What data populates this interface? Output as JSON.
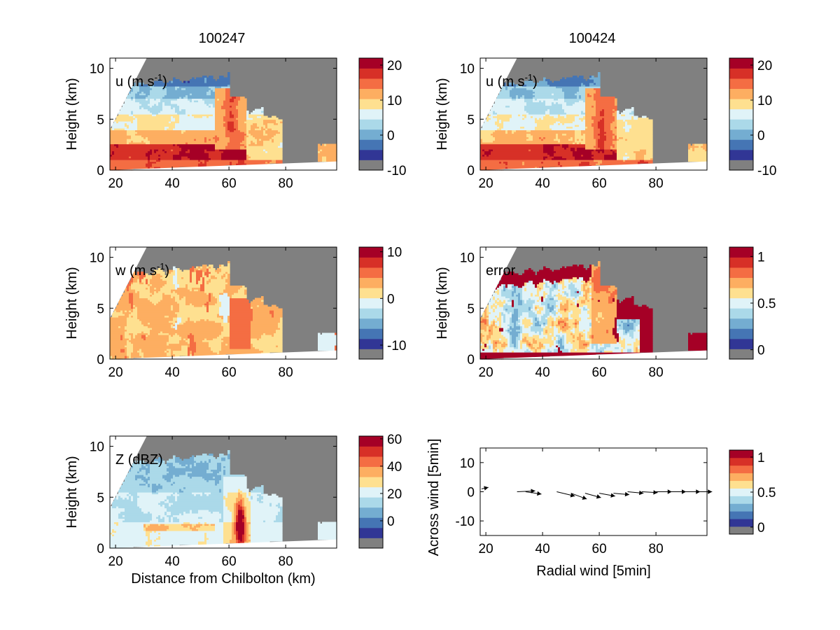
{
  "columns": [
    {
      "title": "100247"
    },
    {
      "title": "100424"
    }
  ],
  "chart_data": [
    {
      "id": "u-left",
      "type": "heatmap",
      "column": "100247",
      "label": "u (m s",
      "label_sup": "-1",
      "label_tail": ")",
      "ylabel": "Height (km)",
      "xlabel": "",
      "xlim": [
        18,
        98
      ],
      "ylim": [
        0,
        11
      ],
      "xticks": [
        "20",
        "40",
        "60",
        "80"
      ],
      "yticks": [
        "0",
        "5",
        "10"
      ],
      "field": "u",
      "colorbar": {
        "range": [
          -10,
          22
        ],
        "ticks": [
          {
            "v": -10,
            "label": "-10"
          },
          {
            "v": 0,
            "label": "0"
          },
          {
            "v": 10,
            "label": "10"
          },
          {
            "v": 20,
            "label": "20"
          }
        ]
      }
    },
    {
      "id": "u-right",
      "type": "heatmap",
      "column": "100424",
      "label": "u (m s",
      "label_sup": "-1",
      "label_tail": ")",
      "ylabel": "Height (km)",
      "xlabel": "",
      "xlim": [
        18,
        98
      ],
      "ylim": [
        0,
        11
      ],
      "xticks": [
        "20",
        "40",
        "60",
        "80"
      ],
      "yticks": [
        "0",
        "5",
        "10"
      ],
      "field": "u2",
      "colorbar": {
        "range": [
          -10,
          22
        ],
        "ticks": [
          {
            "v": -10,
            "label": "-10"
          },
          {
            "v": 0,
            "label": "0"
          },
          {
            "v": 10,
            "label": "10"
          },
          {
            "v": 20,
            "label": "20"
          }
        ]
      }
    },
    {
      "id": "w-left",
      "type": "heatmap",
      "column": "100247",
      "label": "w (m s",
      "label_sup": "-1",
      "label_tail": ")",
      "ylabel": "Height (km)",
      "xlabel": "",
      "xlim": [
        18,
        98
      ],
      "ylim": [
        0,
        11
      ],
      "xticks": [
        "20",
        "40",
        "60",
        "80"
      ],
      "yticks": [
        "0",
        "5",
        "10"
      ],
      "field": "w",
      "colorbar": {
        "range": [
          -13,
          11
        ],
        "ticks": [
          {
            "v": -10,
            "label": "-10"
          },
          {
            "v": 0,
            "label": "0"
          },
          {
            "v": 10,
            "label": "10"
          }
        ]
      }
    },
    {
      "id": "error-right",
      "type": "heatmap",
      "column": "100424",
      "label": "error",
      "label_sup": "",
      "label_tail": "",
      "ylabel": "Height (km)",
      "xlabel": "",
      "xlim": [
        18,
        98
      ],
      "ylim": [
        0,
        11
      ],
      "xticks": [
        "20",
        "40",
        "60",
        "80"
      ],
      "yticks": [
        "0",
        "5",
        "10"
      ],
      "field": "err",
      "colorbar": {
        "range": [
          -0.1,
          1.1
        ],
        "ticks": [
          {
            "v": 0,
            "label": "0"
          },
          {
            "v": 0.5,
            "label": "0.5"
          },
          {
            "v": 1,
            "label": "1"
          }
        ]
      }
    },
    {
      "id": "z-left",
      "type": "heatmap",
      "column": "100247",
      "label": "Z (dBZ)",
      "label_sup": "",
      "label_tail": "",
      "ylabel": "Height (km)",
      "xlabel": "Distance from Chilbolton (km)",
      "xlim": [
        18,
        98
      ],
      "ylim": [
        0,
        11
      ],
      "xticks": [
        "20",
        "40",
        "60",
        "80"
      ],
      "yticks": [
        "0",
        "5",
        "10"
      ],
      "field": "z",
      "colorbar": {
        "range": [
          -20,
          62
        ],
        "ticks": [
          {
            "v": 0,
            "label": "0"
          },
          {
            "v": 20,
            "label": "20"
          },
          {
            "v": 40,
            "label": "40"
          },
          {
            "v": 60,
            "label": "60"
          }
        ]
      }
    },
    {
      "id": "wind-right",
      "type": "quiver",
      "column": "100424",
      "xlabel": "Radial wind [5min]",
      "ylabel": "Across wind [5min]",
      "xlim": [
        18,
        98
      ],
      "ylim": [
        -15,
        15
      ],
      "xticks": [
        "20",
        "40",
        "60",
        "80"
      ],
      "yticks": [
        "-10",
        "0",
        "10"
      ],
      "arrows": [
        {
          "x": 18.5,
          "y": 1.0,
          "u": 1.5,
          "v": 0.5
        },
        {
          "x": 31,
          "y": 0.0,
          "u": 4.0,
          "v": 0.3
        },
        {
          "x": 34,
          "y": 0.0,
          "u": 3.5,
          "v": -0.8
        },
        {
          "x": 45,
          "y": 0.0,
          "u": 4.0,
          "v": -1.5
        },
        {
          "x": 50,
          "y": -0.5,
          "u": 3.5,
          "v": -2.0
        },
        {
          "x": 55,
          "y": -0.5,
          "u": 3.5,
          "v": -1.5
        },
        {
          "x": 60,
          "y": -0.5,
          "u": 3.5,
          "v": -1.0
        },
        {
          "x": 65,
          "y": -0.5,
          "u": 3.5,
          "v": -0.5
        },
        {
          "x": 70,
          "y": 0.0,
          "u": 3.5,
          "v": -0.5
        },
        {
          "x": 75,
          "y": 0.0,
          "u": 3.5,
          "v": -0.3
        },
        {
          "x": 80,
          "y": 0.0,
          "u": 3.5,
          "v": 0.0
        },
        {
          "x": 85,
          "y": 0.0,
          "u": 3.5,
          "v": 0.0
        },
        {
          "x": 90,
          "y": 0.0,
          "u": 3.5,
          "v": 0.0
        },
        {
          "x": 95,
          "y": 0.0,
          "u": 3.0,
          "v": 0.0
        }
      ],
      "colorbar": {
        "range": [
          -0.1,
          1.1
        ],
        "ticks": [
          {
            "v": 0,
            "label": "0"
          },
          {
            "v": 0.5,
            "label": "0.5"
          },
          {
            "v": 1,
            "label": "1"
          }
        ]
      }
    }
  ],
  "colormap": [
    "#313695",
    "#4575b4",
    "#74add1",
    "#abd9e9",
    "#e0f3f8",
    "#fee090",
    "#fdae61",
    "#f46d43",
    "#d73027",
    "#a50026"
  ],
  "colors": {
    "nodata": "#808080",
    "below": "#ffffff"
  }
}
